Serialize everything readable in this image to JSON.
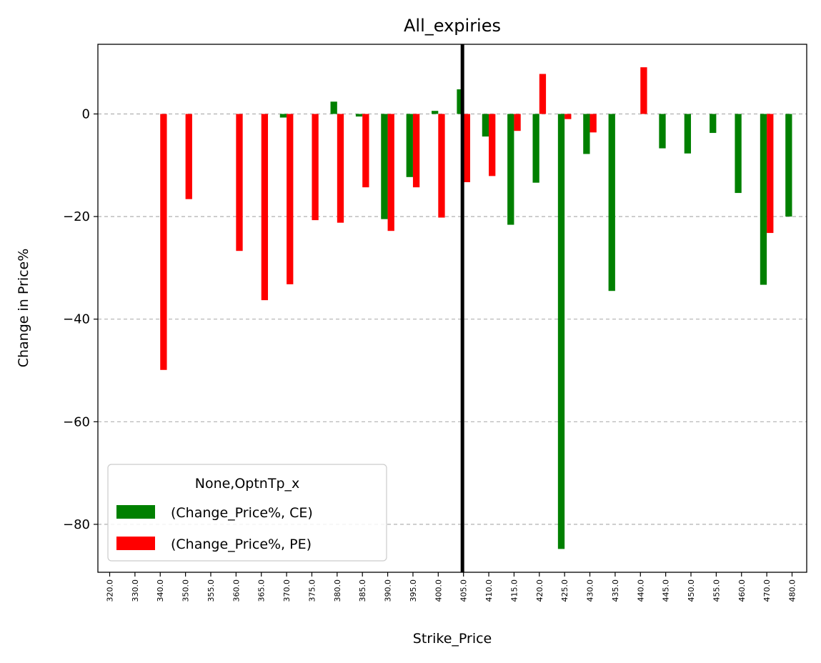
{
  "chart_data": {
    "type": "bar",
    "title": "All_expiries",
    "xlabel": "Strike_Price",
    "ylabel": "Change in Price%",
    "ylim": [
      -90,
      13.5
    ],
    "yticks": [
      0,
      -20,
      -40,
      -60,
      -80
    ],
    "ytick_labels": [
      "0",
      "−20",
      "−40",
      "−60",
      "−80"
    ],
    "grid": "y dashed",
    "categories": [
      "320.0",
      "330.0",
      "340.0",
      "350.0",
      "355.0",
      "360.0",
      "365.0",
      "370.0",
      "375.0",
      "380.0",
      "385.0",
      "390.0",
      "395.0",
      "400.0",
      "405.0",
      "410.0",
      "415.0",
      "420.0",
      "425.0",
      "430.0",
      "435.0",
      "440.0",
      "445.0",
      "450.0",
      "455.0",
      "460.0",
      "470.0",
      "480.0"
    ],
    "series": [
      {
        "name": "(Change_Price%, CE)",
        "color": "#008000",
        "values": [
          0,
          0,
          0,
          0,
          0,
          0,
          0,
          -0.7,
          0,
          2.4,
          -0.5,
          -20.5,
          -12.3,
          0.6,
          4.8,
          -4.4,
          -21.6,
          -13.4,
          -84.8,
          -7.8,
          -34.5,
          0,
          -6.7,
          -7.7,
          -3.7,
          -15.4,
          -33.3,
          -20.0
        ]
      },
      {
        "name": "(Change_Price%, PE)",
        "color": "#ff0000",
        "values": [
          0,
          0,
          -49.9,
          -16.6,
          0,
          -26.7,
          -36.3,
          -33.2,
          -20.7,
          -21.2,
          -14.3,
          -22.8,
          -14.3,
          -20.2,
          -13.3,
          -12.1,
          -3.3,
          7.8,
          -1.0,
          -3.6,
          0,
          9.1,
          0,
          0,
          0,
          0,
          -23.2,
          0
        ]
      }
    ],
    "vline": {
      "at_category": "405.0",
      "color": "#000000"
    },
    "legend": {
      "title": "None,OptnTp_x",
      "placement": "lower-left"
    }
  }
}
